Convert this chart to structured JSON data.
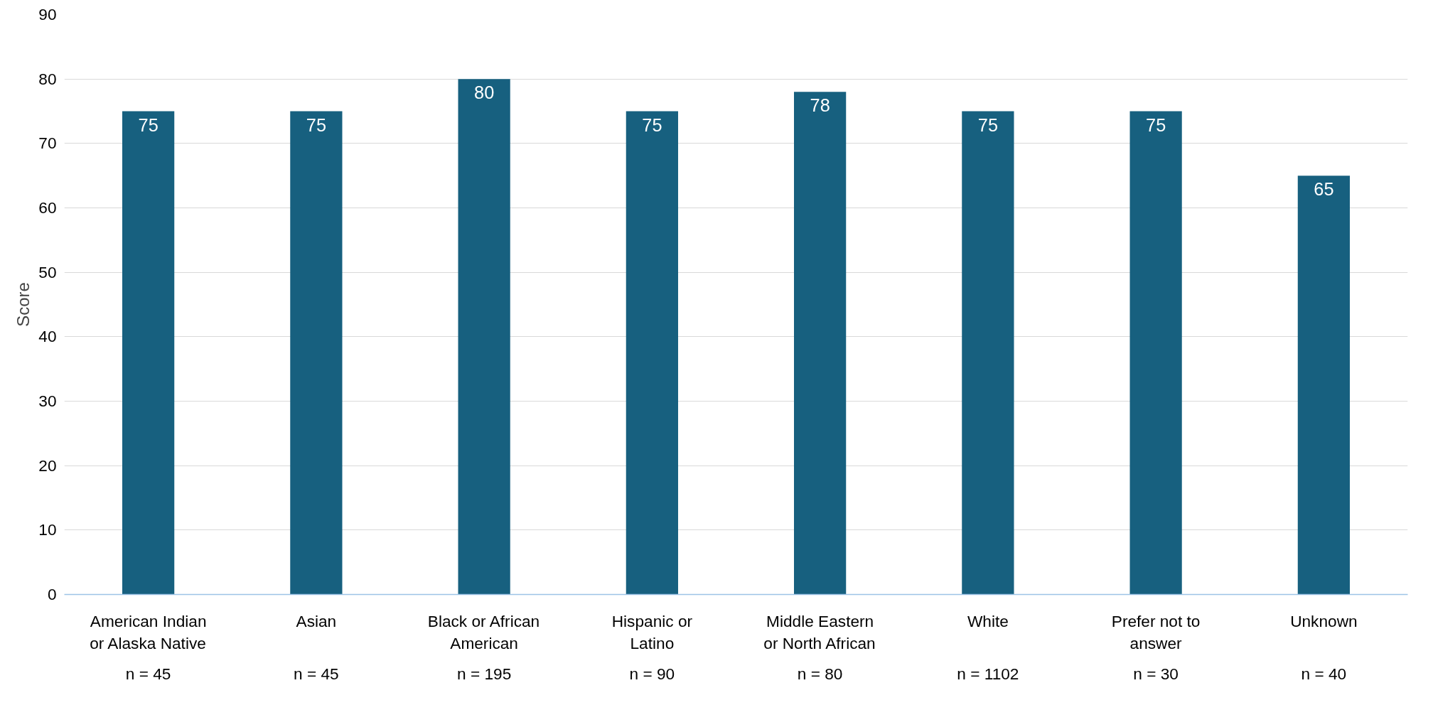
{
  "chart_data": {
    "type": "bar",
    "ylabel": "Score",
    "categories": [
      "American Indian\nor Alaska Native",
      "Asian",
      "Black or African\nAmerican",
      "Hispanic or\nLatino",
      "Middle Eastern\nor North African",
      "White",
      "Prefer not to\nanswer",
      "Unknown"
    ],
    "values": [
      75,
      75,
      80,
      75,
      78,
      75,
      75,
      65
    ],
    "color": "#17607f",
    "ylim": [
      0,
      90
    ],
    "yticks": [
      0,
      10,
      20,
      30,
      40,
      50,
      60,
      70,
      80,
      90
    ],
    "grid": "y",
    "data_labels": true,
    "annotations": [
      "n = 45",
      "n = 45",
      "n = 195",
      "n = 90",
      "n = 80",
      "n = 1102",
      "n = 30",
      "n = 40"
    ]
  }
}
